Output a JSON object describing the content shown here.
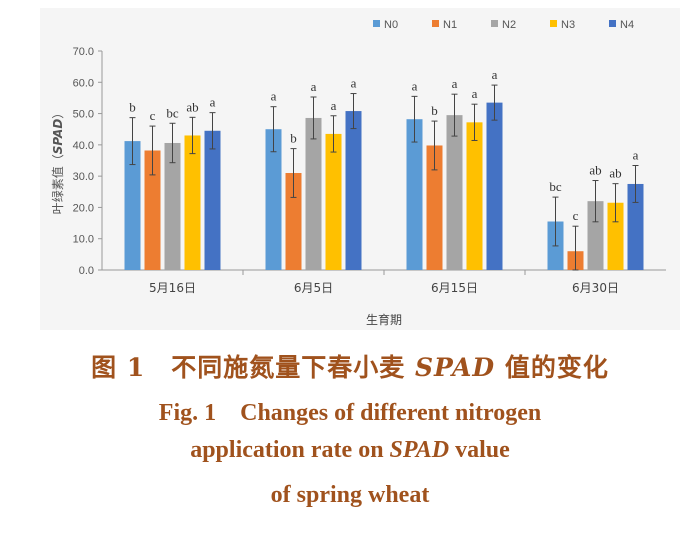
{
  "chart_data": {
    "type": "bar",
    "ylabel_prefix": "叶绿素值（",
    "ylabel_italic": "SPAD",
    "ylabel_suffix": "）",
    "xlabel": "生育期",
    "ylim": [
      0,
      70
    ],
    "yticks": [
      "0.0",
      "10.0",
      "20.0",
      "30.0",
      "40.0",
      "50.0",
      "60.0",
      "70.0"
    ],
    "grid": false,
    "legend_position": "top-right",
    "categories": [
      "5月16日",
      "6月5日",
      "6月15日",
      "6月30日"
    ],
    "series": [
      {
        "name": "N0",
        "color": "#5b9bd5",
        "values": [
          41.2,
          45.0,
          48.2,
          15.5
        ],
        "errors": [
          7.5,
          7.2,
          7.3,
          7.8
        ],
        "letters": [
          "b",
          "a",
          "a",
          "bc"
        ]
      },
      {
        "name": "N1",
        "color": "#ed7d31",
        "values": [
          38.2,
          31.0,
          39.8,
          6.0
        ],
        "errors": [
          7.8,
          7.8,
          7.8,
          8.0
        ],
        "letters": [
          "c",
          "b",
          "b",
          "c"
        ]
      },
      {
        "name": "N2",
        "color": "#a5a5a5",
        "values": [
          40.6,
          48.6,
          49.5,
          22.0
        ],
        "errors": [
          6.3,
          6.7,
          6.7,
          6.6
        ],
        "letters": [
          "bc",
          "a",
          "a",
          "ab"
        ]
      },
      {
        "name": "N3",
        "color": "#ffc000",
        "values": [
          43.0,
          43.5,
          47.2,
          21.5
        ],
        "errors": [
          5.8,
          5.8,
          5.8,
          6.1
        ],
        "letters": [
          "ab",
          "a",
          "a",
          "ab"
        ]
      },
      {
        "name": "N4",
        "color": "#4472c4",
        "values": [
          44.5,
          50.8,
          53.5,
          27.5
        ],
        "errors": [
          5.8,
          5.6,
          5.6,
          5.9
        ],
        "letters": [
          "a",
          "a",
          "a",
          "a"
        ]
      }
    ]
  },
  "caption": {
    "cn_prefix": "图 1　不同施氮量下春小麦 ",
    "cn_italic": "SPAD",
    "cn_suffix": " 值的变化",
    "en_line1": "Fig. 1　Changes of different nitrogen",
    "en_line2_prefix": "application rate on ",
    "en_line2_italic": "SPAD",
    "en_line2_suffix": " value",
    "en_line3": "of spring wheat"
  }
}
